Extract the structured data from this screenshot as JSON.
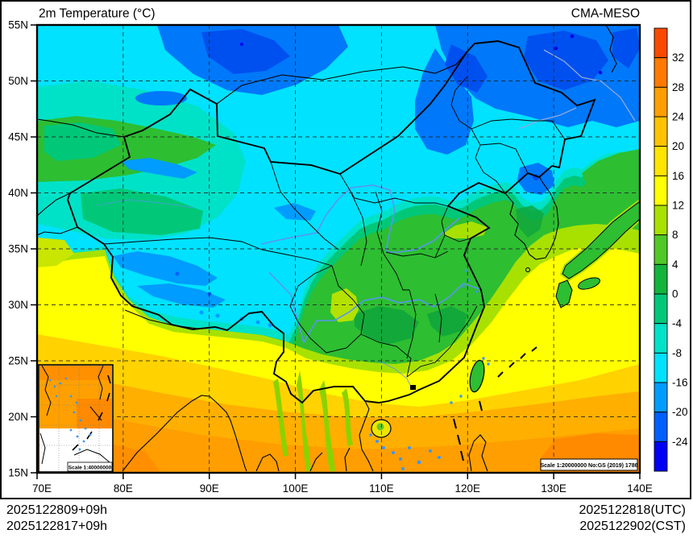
{
  "title": "2m Temperature (°C)",
  "model": "CMA-MESO",
  "footer": {
    "init_plus_lead_utc": "2025122809+09h",
    "init_plus_lead_cst": "2025122817+09h",
    "valid_utc": "2025122818(UTC)",
    "valid_cst": "2025122902(CST)"
  },
  "axes": {
    "lat_values": [
      55,
      50,
      45,
      40,
      35,
      30,
      25,
      20,
      15
    ],
    "lat_labels": [
      "55N",
      "50N",
      "45N",
      "40N",
      "35N",
      "30N",
      "25N",
      "20N",
      "15N"
    ],
    "lon_values": [
      70,
      80,
      90,
      100,
      110,
      120,
      130,
      140
    ],
    "lon_labels": [
      "70E",
      "80E",
      "90E",
      "100E",
      "110E",
      "120E",
      "130E",
      "140E"
    ]
  },
  "colorbar": {
    "labels": [
      "32",
      "28",
      "24",
      "20",
      "16",
      "12",
      "8",
      "4",
      "0",
      "-4",
      "-8",
      "-16",
      "-20",
      "-24"
    ],
    "colors": [
      "#F94A00",
      "#FF7A00",
      "#FF9E00",
      "#FFC300",
      "#FFE400",
      "#FFFF00",
      "#A8E100",
      "#50C828",
      "#12B43C",
      "#00C878",
      "#00E2C8",
      "#00E2FF",
      "#009CFF",
      "#0060FF",
      "#0000F5"
    ]
  },
  "map": {
    "extent": {
      "lon": [
        70,
        140
      ],
      "lat": [
        15,
        55
      ]
    },
    "grid_interval": {
      "lon": 10,
      "lat": 5
    },
    "scale_note": "Scale 1:20000000 No:GS (2019) 1786",
    "inset_scale_note": "Scale 1:40000000",
    "palette_note": "2m temperature shading, °C"
  }
}
